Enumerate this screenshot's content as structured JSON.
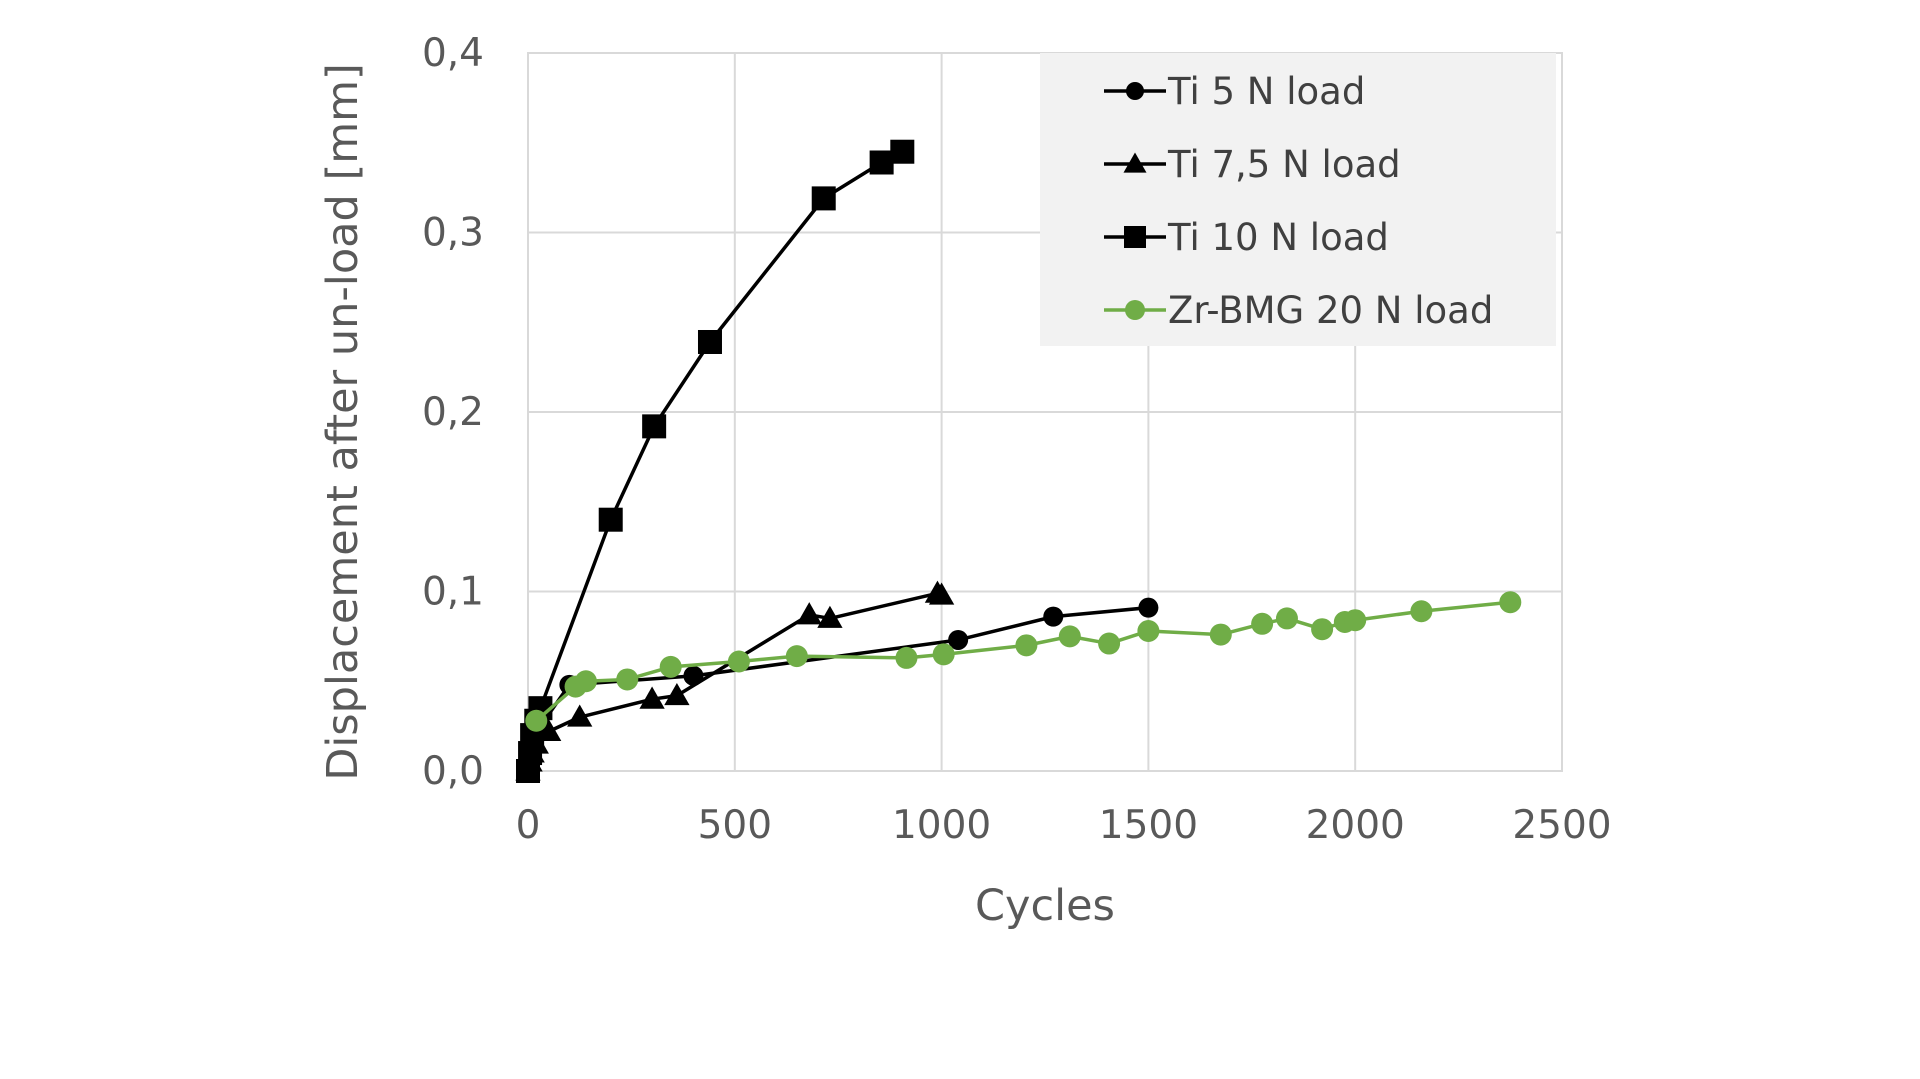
{
  "chart_data": {
    "type": "line",
    "title": "",
    "xlabel": "Cycles",
    "ylabel": "Displacement after un-load [mm]",
    "xlim": [
      0,
      2500
    ],
    "ylim": [
      0,
      0.4
    ],
    "x_ticks": [
      0,
      500,
      1000,
      1500,
      2000,
      2500
    ],
    "x_tick_labels": [
      "0",
      "500",
      "1000",
      "1500",
      "2000",
      "2500"
    ],
    "y_ticks": [
      0,
      0.1,
      0.2,
      0.3,
      0.4
    ],
    "y_tick_labels": [
      "0,0",
      "0,1",
      "0,2",
      "0,3",
      "0,4"
    ],
    "grid": true,
    "legend_position": "top-right",
    "series": [
      {
        "name": "Ti 5 N load",
        "marker": "circle",
        "color": "#000000",
        "x": [
          0,
          2,
          5,
          10,
          20,
          30,
          100,
          400,
          1040,
          1270,
          1500
        ],
        "y": [
          0.0,
          0.005,
          0.01,
          0.015,
          0.02,
          0.025,
          0.048,
          0.053,
          0.073,
          0.086,
          0.091
        ]
      },
      {
        "name": "Ti 7,5 N load",
        "marker": "triangle",
        "color": "#000000",
        "x": [
          0,
          5,
          10,
          20,
          50,
          125,
          300,
          360,
          680,
          730,
          990,
          1000
        ],
        "y": [
          0.0,
          0.005,
          0.01,
          0.015,
          0.022,
          0.03,
          0.04,
          0.042,
          0.087,
          0.085,
          0.099,
          0.098
        ]
      },
      {
        "name": "Ti 10 N load",
        "marker": "square",
        "color": "#000000",
        "x": [
          0,
          5,
          10,
          20,
          30,
          200,
          305,
          440,
          715,
          855,
          905
        ],
        "y": [
          0.0,
          0.01,
          0.02,
          0.028,
          0.035,
          0.14,
          0.192,
          0.239,
          0.319,
          0.339,
          0.345
        ]
      },
      {
        "name": "Zr-BMG 20 N load",
        "marker": "circle",
        "color": "#70ad47",
        "x": [
          20,
          115,
          140,
          240,
          345,
          510,
          650,
          915,
          1005,
          1205,
          1310,
          1405,
          1500,
          1675,
          1775,
          1835,
          1920,
          1975,
          2000,
          2160,
          2375
        ],
        "y": [
          0.028,
          0.047,
          0.05,
          0.051,
          0.058,
          0.061,
          0.064,
          0.063,
          0.065,
          0.07,
          0.075,
          0.071,
          0.078,
          0.076,
          0.082,
          0.085,
          0.079,
          0.083,
          0.084,
          0.089,
          0.094
        ]
      }
    ]
  }
}
